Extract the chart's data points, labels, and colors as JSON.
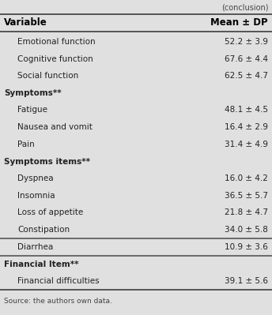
{
  "conclusion_text": "(conclusion)",
  "header_col1": "Variable",
  "header_col2": "Mean ± DP",
  "bg_color": "#e0e0e0",
  "rows": [
    {
      "label": "Emotional function",
      "value": "52.2 ± 3.9",
      "indent": true,
      "bold": false,
      "separator_above": false
    },
    {
      "label": "Cognitive function",
      "value": "67.6 ± 4.4",
      "indent": true,
      "bold": false,
      "separator_above": false
    },
    {
      "label": "Social function",
      "value": "62.5 ± 4.7",
      "indent": true,
      "bold": false,
      "separator_above": false
    },
    {
      "label": "Symptoms**",
      "value": "",
      "indent": false,
      "bold": true,
      "separator_above": false
    },
    {
      "label": "Fatigue",
      "value": "48.1 ± 4.5",
      "indent": true,
      "bold": false,
      "separator_above": false
    },
    {
      "label": "Nausea and vomit",
      "value": "16.4 ± 2.9",
      "indent": true,
      "bold": false,
      "separator_above": false
    },
    {
      "label": "Pain",
      "value": "31.4 ± 4.9",
      "indent": true,
      "bold": false,
      "separator_above": false
    },
    {
      "label": "Symptoms items**",
      "value": "",
      "indent": false,
      "bold": true,
      "separator_above": false
    },
    {
      "label": "Dyspnea",
      "value": "16.0 ± 4.2",
      "indent": true,
      "bold": false,
      "separator_above": false
    },
    {
      "label": "Insomnia",
      "value": "36.5 ± 5.7",
      "indent": true,
      "bold": false,
      "separator_above": false
    },
    {
      "label": "Loss of appetite",
      "value": "21.8 ± 4.7",
      "indent": true,
      "bold": false,
      "separator_above": false
    },
    {
      "label": "Constipation",
      "value": "34.0 ± 5.8",
      "indent": true,
      "bold": false,
      "separator_above": false
    },
    {
      "label": "Diarrhea",
      "value": "10.9 ± 3.6",
      "indent": true,
      "bold": false,
      "separator_above": true
    },
    {
      "label": "Financial Item**",
      "value": "",
      "indent": false,
      "bold": true,
      "separator_above": true
    },
    {
      "label": "Financial difficulties",
      "value": "39.1 ± 5.6",
      "indent": true,
      "bold": false,
      "separator_above": false
    }
  ],
  "footer_text": "Source: the authors own data.",
  "line_color": "#555555",
  "font_size": 7.5,
  "header_font_size": 8.5,
  "conclusion_font_size": 7.0,
  "footer_font_size": 6.5
}
